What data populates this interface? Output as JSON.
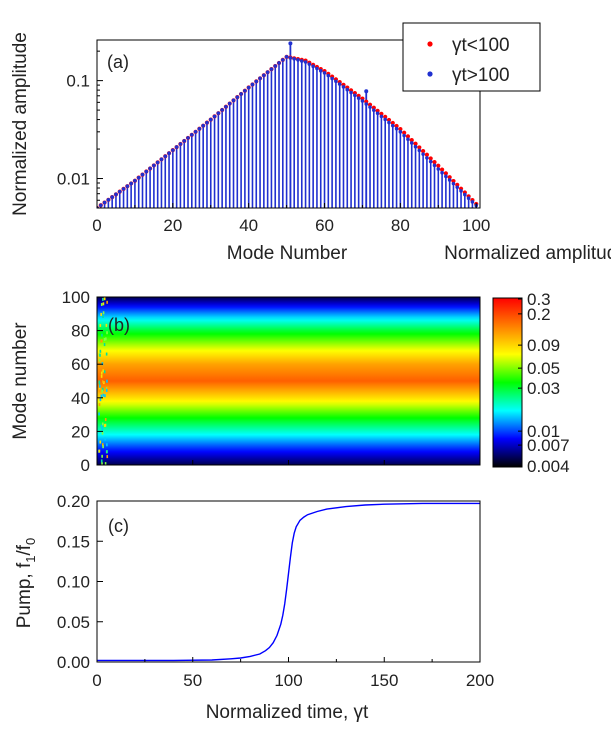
{
  "chart_data": [
    {
      "panel": "(a)",
      "type": "bar",
      "xlabel": "Mode Number",
      "ylabel": "Normalized amplitude",
      "xlim": [
        0,
        101
      ],
      "ylim": [
        0.005,
        0.26
      ],
      "yscale": "log",
      "xticks": [
        "0",
        "20",
        "40",
        "60",
        "80",
        "100"
      ],
      "xtick_values": [
        0,
        20,
        40,
        60,
        80,
        100
      ],
      "yticks": [
        "0.01",
        "0.1"
      ],
      "ytick_values": [
        0.01,
        0.1
      ],
      "legend_position": "top-right",
      "series": [
        {
          "name": "γt<100",
          "marker": "dot",
          "color": "#ff0000",
          "x": [
            0,
            10,
            20,
            30,
            40,
            50,
            55,
            60,
            70,
            80,
            90,
            100
          ],
          "y": [
            0.005,
            0.0095,
            0.0195,
            0.04,
            0.085,
            0.175,
            0.16,
            0.125,
            0.0655,
            0.032,
            0.0135,
            0.0055
          ]
        },
        {
          "name": "γt>100",
          "marker": "bars",
          "color": "#2030d0",
          "x": [
            0,
            10,
            20,
            30,
            40,
            50,
            55,
            60,
            70,
            80,
            90,
            100
          ],
          "y": [
            0.005,
            0.0095,
            0.0195,
            0.04,
            0.085,
            0.175,
            0.155,
            0.12,
            0.062,
            0.03,
            0.0125,
            0.0053
          ],
          "spikes": [
            {
              "x": 51,
              "y": 0.24
            },
            {
              "x": 71,
              "y": 0.078
            }
          ]
        }
      ]
    },
    {
      "panel": "(b)",
      "type": "heatmap",
      "xlabel": "",
      "ylabel": "Mode number",
      "xlim": [
        0,
        200
      ],
      "ylim": [
        0,
        100
      ],
      "yticks": [
        "0",
        "20",
        "40",
        "60",
        "80",
        "100"
      ],
      "ytick_values": [
        0,
        20,
        40,
        60,
        80,
        100
      ],
      "colorbar": {
        "title": "Normalized amplitude",
        "scale": "log",
        "ticks": [
          "0.3",
          "0.2",
          "0.09",
          "0.05",
          "0.03",
          "0.01",
          "0.007",
          "0.004"
        ],
        "tick_values": [
          0.3,
          0.2,
          0.09,
          0.05,
          0.03,
          0.01,
          0.007,
          0.004
        ],
        "colors": [
          "#000000",
          "#0000ff",
          "#00ffff",
          "#00ff00",
          "#ffff00",
          "#ff7f00",
          "#ff0000"
        ]
      },
      "profile": {
        "mode": [
          0,
          10,
          20,
          30,
          40,
          50,
          60,
          70,
          80,
          90,
          100
        ],
        "amplitude": [
          0.005,
          0.0095,
          0.0195,
          0.04,
          0.085,
          0.175,
          0.12,
          0.062,
          0.03,
          0.0125,
          0.005
        ]
      }
    },
    {
      "panel": "(c)",
      "type": "line",
      "xlabel": "Normalized time, γt",
      "ylabel_parts": [
        "Pump, f",
        "1",
        "/f",
        "0"
      ],
      "xlim": [
        0,
        200
      ],
      "ylim": [
        0,
        0.2
      ],
      "xticks": [
        "0",
        "50",
        "100",
        "150",
        "200"
      ],
      "xtick_values": [
        0,
        50,
        100,
        150,
        200
      ],
      "yticks": [
        "0.00",
        "0.05",
        "0.10",
        "0.15",
        "0.20"
      ],
      "ytick_values": [
        0,
        0.05,
        0.1,
        0.15,
        0.2
      ],
      "series": [
        {
          "color": "#0000ff",
          "x": [
            0,
            20,
            40,
            60,
            70,
            75,
            80,
            85,
            88,
            90,
            92,
            94,
            96,
            97,
            98,
            99,
            100,
            101,
            102,
            103,
            104,
            106,
            108,
            110,
            115,
            120,
            130,
            140,
            150,
            170,
            200
          ],
          "y": [
            0.002,
            0.002,
            0.002,
            0.0025,
            0.004,
            0.005,
            0.007,
            0.01,
            0.014,
            0.018,
            0.024,
            0.033,
            0.047,
            0.058,
            0.072,
            0.09,
            0.11,
            0.13,
            0.148,
            0.16,
            0.168,
            0.176,
            0.18,
            0.183,
            0.187,
            0.19,
            0.193,
            0.195,
            0.196,
            0.197,
            0.197
          ]
        }
      ]
    }
  ]
}
